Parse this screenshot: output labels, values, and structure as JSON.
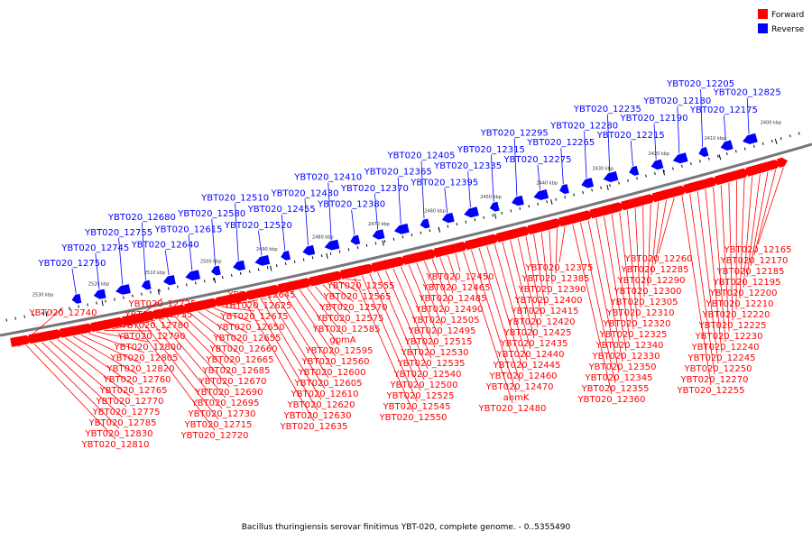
{
  "colors": {
    "forward": "#ff0000",
    "reverse": "#0000ff",
    "backbone": "#777777",
    "tick": "#000000"
  },
  "legend": [
    {
      "label": "Forward",
      "color": "#ff0000"
    },
    {
      "label": "Reverse",
      "color": "#0000ff"
    }
  ],
  "caption": "Bacillus thuringiensis serovar finitimus YBT-020, complete genome. - 0..5355490",
  "tick_labels": [
    "2530 kbp",
    "2520 kbp",
    "2510 kbp",
    "2500 kbp",
    "2490 kbp",
    "2480 kbp",
    "2470 kbp",
    "2460 kbp",
    "2450 kbp",
    "2440 kbp",
    "2430 kbp",
    "2420 kbp",
    "2410 kbp",
    "2400 kbp"
  ],
  "reverse_genes": [
    "YBT020_12750",
    "YBT020_12745",
    "YBT020_12755",
    "YBT020_12680",
    "YBT020_12640",
    "YBT020_12615",
    "YBT020_12580",
    "YBT020_12510",
    "YBT020_12520",
    "YBT020_12455",
    "YBT020_12430",
    "YBT020_12410",
    "YBT020_12380",
    "YBT020_12370",
    "YBT020_12365",
    "YBT020_12405",
    "YBT020_12395",
    "YBT020_12335",
    "YBT020_12315",
    "YBT020_12295",
    "YBT020_12275",
    "YBT020_12265",
    "YBT020_12280",
    "YBT020_12235",
    "YBT020_12215",
    "YBT020_12190",
    "YBT020_12180",
    "YBT020_12205",
    "YBT020_12175",
    "YBT020_12825"
  ],
  "forward_genes": [
    "YBT020_12165",
    "YBT020_12170",
    "YBT020_12185",
    "YBT020_12195",
    "YBT020_12200",
    "YBT020_12210",
    "YBT020_12220",
    "YBT020_12225",
    "YBT020_12230",
    "YBT020_12240",
    "YBT020_12245",
    "YBT020_12250",
    "YBT020_12270",
    "YBT020_12255",
    "YBT020_12260",
    "YBT020_12285",
    "YBT020_12290",
    "YBT020_12300",
    "YBT020_12305",
    "YBT020_12310",
    "YBT020_12320",
    "YBT020_12325",
    "YBT020_12340",
    "YBT020_12330",
    "YBT020_12350",
    "YBT020_12345",
    "YBT020_12355",
    "YBT020_12360",
    "YBT020_12375",
    "YBT020_12385",
    "YBT020_12390",
    "YBT020_12400",
    "YBT020_12415",
    "YBT020_12420",
    "YBT020_12425",
    "YBT020_12435",
    "YBT020_12440",
    "YBT020_12445",
    "YBT020_12460",
    "YBT020_12470",
    "anmK",
    "YBT020_12480",
    "YBT020_12450",
    "YBT020_12465",
    "YBT020_12485",
    "YBT020_12490",
    "YBT020_12505",
    "YBT020_12495",
    "YBT020_12515",
    "YBT020_12530",
    "YBT020_12535",
    "YBT020_12540",
    "YBT020_12500",
    "YBT020_12525",
    "YBT020_12545",
    "YBT020_12550",
    "YBT020_12555",
    "YBT020_12565",
    "YBT020_12570",
    "YBT020_12575",
    "YBT020_12585",
    "gpmA",
    "YBT020_12595",
    "YBT020_12560",
    "YBT020_12600",
    "YBT020_12605",
    "YBT020_12610",
    "YBT020_12620",
    "YBT020_12630",
    "YBT020_12635",
    "YBT020_12645",
    "YBT020_12625",
    "YBT020_12675",
    "YBT020_12650",
    "YBT020_12655",
    "YBT020_12660",
    "YBT020_12665",
    "YBT020_12685",
    "YBT020_12670",
    "YBT020_12690",
    "YBT020_12695",
    "YBT020_12730",
    "YBT020_12715",
    "YBT020_12720",
    "YBT020_12725",
    "YBT020_12735",
    "YBT020_12780",
    "YBT020_12790",
    "YBT020_12800",
    "YBT020_12805",
    "YBT020_12820",
    "YBT020_12760",
    "YBT020_12765",
    "YBT020_12770",
    "YBT020_12775",
    "YBT020_12785",
    "YBT020_12830",
    "YBT020_12810",
    "YBT020_12740"
  ]
}
